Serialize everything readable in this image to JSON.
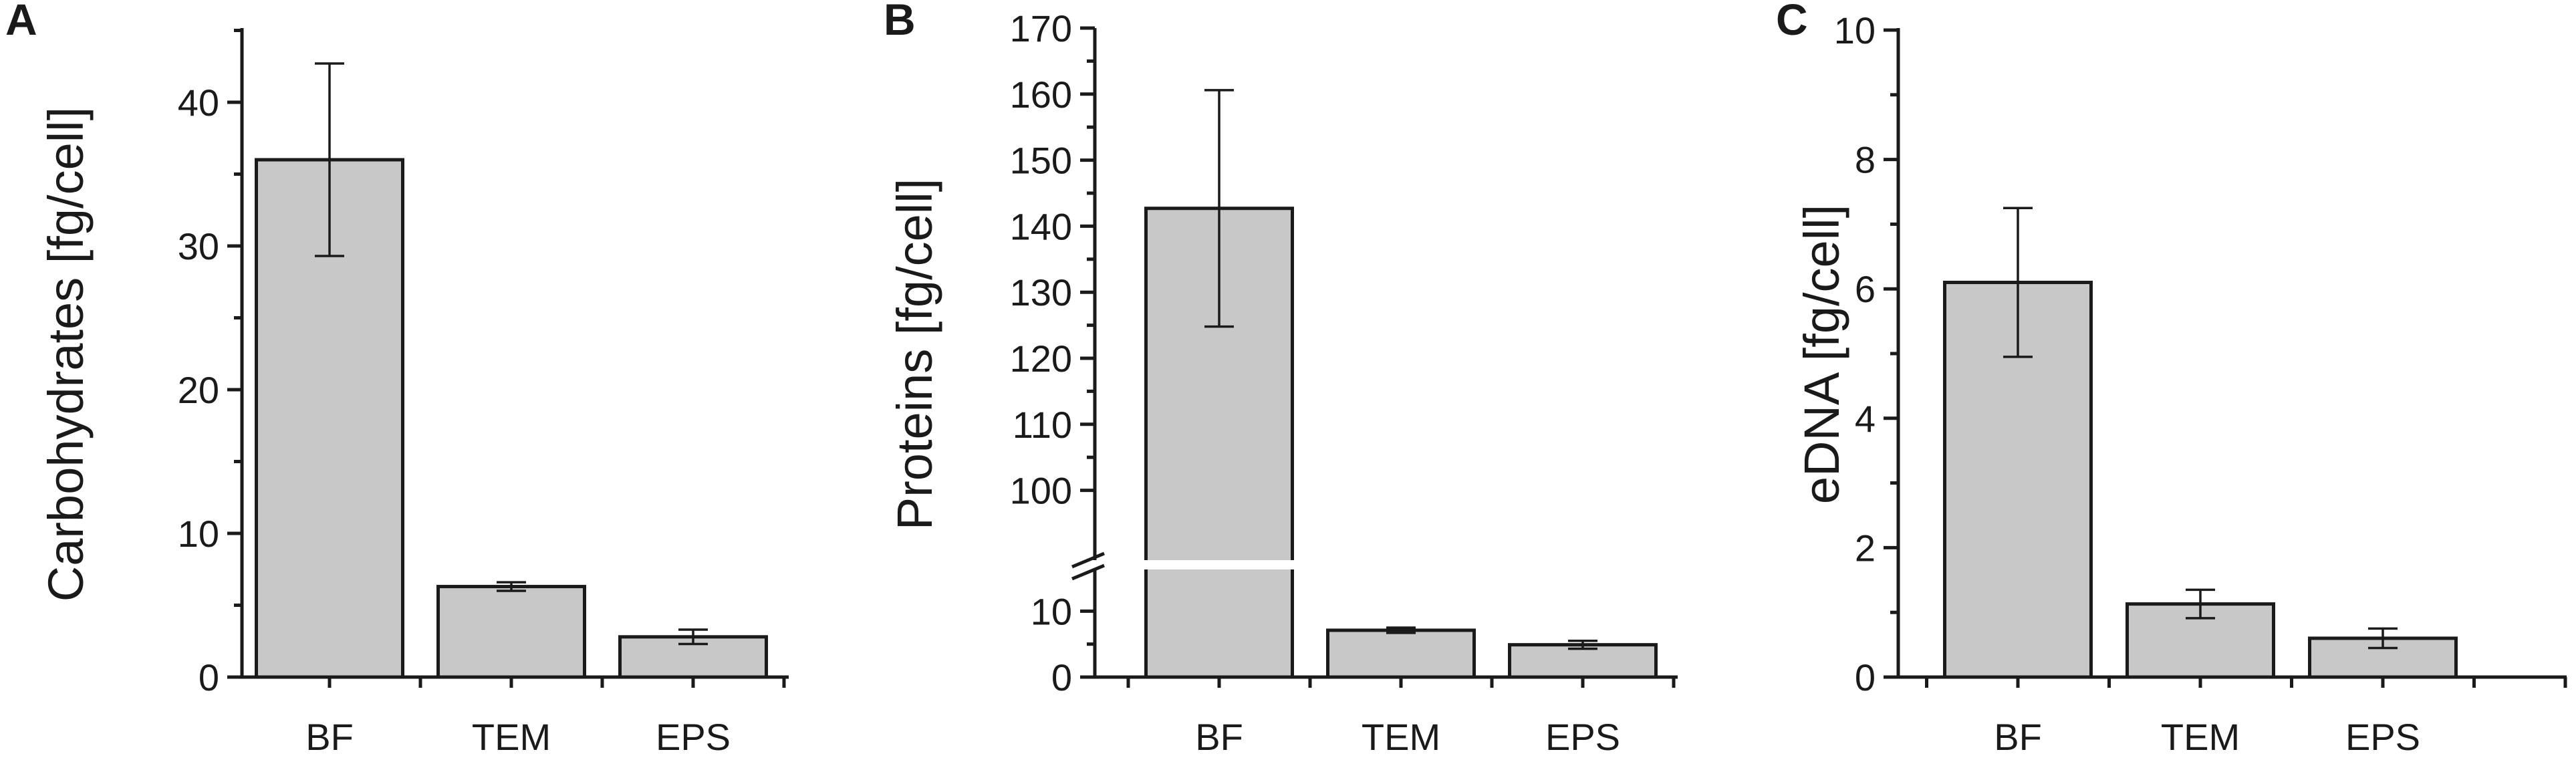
{
  "chart_data": [
    {
      "type": "bar",
      "panel_label": "A",
      "categories": [
        "BF",
        "TEM",
        "EPS"
      ],
      "values": [
        36.0,
        6.3,
        2.8
      ],
      "errors": [
        6.7,
        0.3,
        0.5
      ],
      "ylabel": "Carbohydrates [fg/cell]",
      "ylim": [
        0,
        45
      ],
      "yticks": [
        0,
        10,
        20,
        30,
        40
      ],
      "bar_color": "#c8c8c8"
    },
    {
      "type": "bar",
      "panel_label": "B",
      "categories": [
        "BF",
        "TEM",
        "EPS"
      ],
      "values": [
        142.7,
        7.1,
        4.9
      ],
      "errors": [
        17.9,
        0.4,
        0.6
      ],
      "ylabel": "Proteins [fg/cell]",
      "yticks_lower": [
        0,
        10
      ],
      "yticks_upper": [
        100,
        110,
        120,
        130,
        140,
        150,
        160,
        170
      ],
      "axis_break": {
        "lower_range": [
          0,
          15
        ],
        "upper_range": [
          95,
          170
        ]
      },
      "bar_color": "#c8c8c8"
    },
    {
      "type": "bar",
      "panel_label": "C",
      "categories": [
        "BF",
        "TEM",
        "EPS"
      ],
      "values": [
        6.1,
        1.13,
        0.6
      ],
      "errors": [
        1.15,
        0.22,
        0.15
      ],
      "ylabel": "eDNA [fg/cell]",
      "ylim": [
        0,
        10
      ],
      "yticks": [
        0,
        2,
        4,
        6,
        8,
        10
      ],
      "bar_color": "#c8c8c8"
    }
  ]
}
